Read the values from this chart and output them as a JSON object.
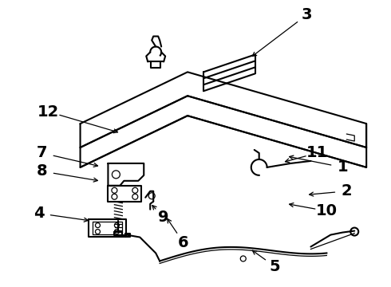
{
  "bg_color": "#ffffff",
  "line_color": "#000000",
  "label_fontsize": 14,
  "figsize": [
    4.9,
    3.6
  ],
  "dpi": 100,
  "arrows": {
    "1": {
      "label": [
        430,
        210
      ],
      "target": [
        355,
        195
      ]
    },
    "2": {
      "label": [
        435,
        240
      ],
      "target": [
        380,
        245
      ]
    },
    "3": {
      "label": [
        385,
        18
      ],
      "target": [
        310,
        75
      ]
    },
    "4": {
      "label": [
        48,
        268
      ],
      "target": [
        118,
        278
      ]
    },
    "5": {
      "label": [
        345,
        335
      ],
      "target": [
        310,
        310
      ]
    },
    "6": {
      "label": [
        230,
        305
      ],
      "target": [
        205,
        268
      ]
    },
    "7": {
      "label": [
        52,
        192
      ],
      "target": [
        130,
        210
      ]
    },
    "8": {
      "label": [
        52,
        215
      ],
      "target": [
        130,
        228
      ]
    },
    "9": {
      "label": [
        205,
        273
      ],
      "target": [
        185,
        252
      ]
    },
    "10": {
      "label": [
        410,
        265
      ],
      "target": [
        355,
        255
      ]
    },
    "11": {
      "label": [
        398,
        192
      ],
      "target": [
        350,
        205
      ]
    },
    "12": {
      "label": [
        60,
        140
      ],
      "target": [
        155,
        168
      ]
    }
  }
}
